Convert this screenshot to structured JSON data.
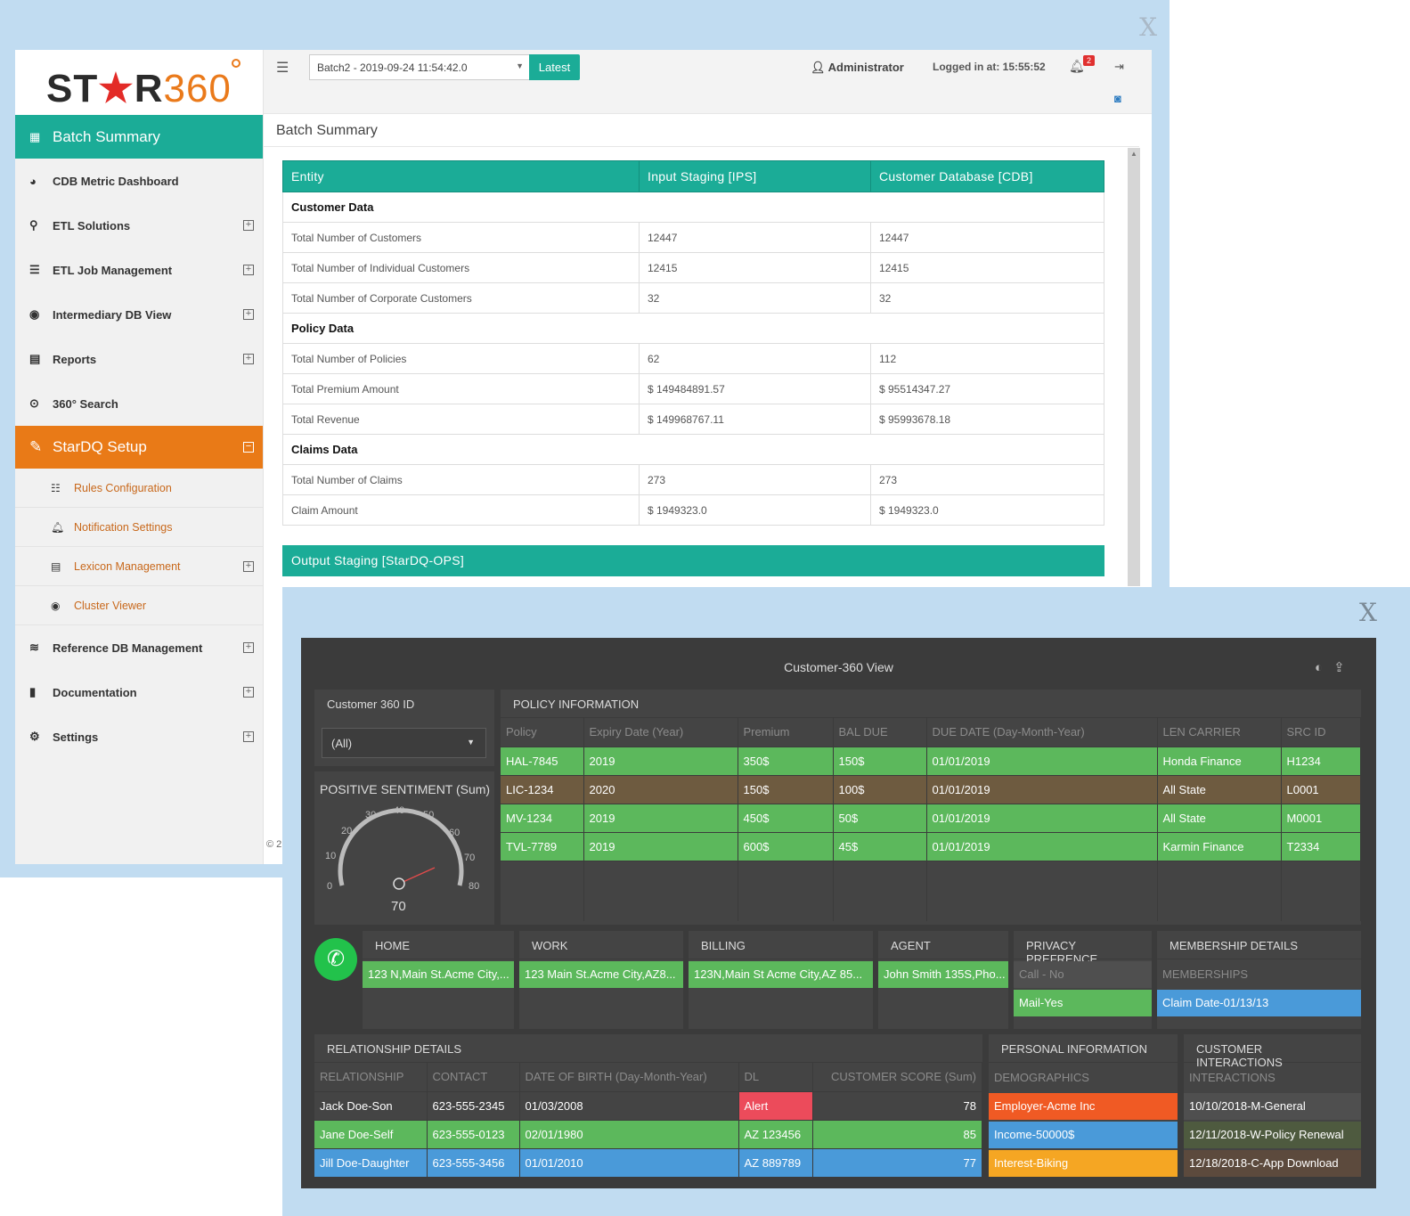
{
  "outer_close": "X",
  "logo": {
    "st": "ST",
    "star": "★",
    "r": "R",
    "n": "360"
  },
  "sidebar": {
    "active": "Batch Summary",
    "items": [
      "CDB Metric Dashboard",
      "ETL Solutions",
      "ETL Job Management",
      "Intermediary DB View",
      "Reports",
      "360° Search"
    ],
    "stardq": "StarDQ Setup",
    "subs": [
      "Rules Configuration",
      "Notification Settings",
      "Lexicon Management",
      "Cluster Viewer"
    ],
    "bottom": [
      "Reference DB Management",
      "Documentation",
      "Settings"
    ],
    "copyright": "© 2"
  },
  "topbar": {
    "batch": "Batch2 - 2019-09-24 11:54:42.0",
    "latest": "Latest",
    "admin": "Administrator",
    "logged": "Logged in at: 15:55:52",
    "notifications": "2"
  },
  "page_title": "Batch Summary",
  "summary": {
    "headers": [
      "Entity",
      "Input Staging [IPS]",
      "Customer Database [CDB]"
    ],
    "sections": [
      {
        "title": "Customer Data",
        "rows": [
          [
            "Total Number of Customers",
            "12447",
            "12447"
          ],
          [
            "Total Number of Individual Customers",
            "12415",
            "12415"
          ],
          [
            "Total Number of Corporate Customers",
            "32",
            "32"
          ]
        ]
      },
      {
        "title": "Policy Data",
        "rows": [
          [
            "Total Number of Policies",
            "62",
            "112"
          ],
          [
            "Total Premium Amount",
            "$  149484891.57",
            "$  95514347.27"
          ],
          [
            "Total Revenue",
            "$  149968767.11",
            "$  95993678.18"
          ]
        ]
      },
      {
        "title": "Claims Data",
        "rows": [
          [
            "Total Number of Claims",
            "273",
            "273"
          ],
          [
            "Claim Amount",
            "$  1949323.0",
            "$  1949323.0"
          ]
        ]
      }
    ],
    "ops": "Output Staging [StarDQ-OPS]"
  },
  "c360": {
    "close": "X",
    "title": "Customer-360 View",
    "id_label": "Customer 360 ID",
    "id_value": "(All)",
    "gauge_title": "POSITIVE SENTIMENT (Sum)",
    "gauge_value": "70",
    "gauge_ticks": [
      "0",
      "10",
      "20",
      "30",
      "40",
      "50",
      "60",
      "70",
      "80"
    ],
    "policy": {
      "title": "POLICY INFORMATION",
      "headers": [
        "Policy",
        "Expiry Date (Year)",
        "Premium",
        "BAL DUE",
        "DUE DATE (Day-Month-Year)",
        "LEN CARRIER",
        "SRC ID"
      ],
      "rows": [
        [
          "HAL-7845",
          "2019",
          "350$",
          "150$",
          "01/01/2019",
          "Honda Finance",
          "H1234"
        ],
        [
          "LIC-1234",
          "2020",
          "150$",
          "100$",
          "01/01/2019",
          "All State",
          "L0001"
        ],
        [
          "MV-1234",
          "2019",
          "450$",
          "50$",
          "01/01/2019",
          "All State",
          "M0001"
        ],
        [
          "TVL-7789",
          "2019",
          "600$",
          "45$",
          "01/01/2019",
          "Karmin Finance",
          "T2334"
        ]
      ]
    },
    "address": {
      "home_label": "HOME",
      "home": "123 N,Main St.Acme City,...",
      "work_label": "WORK",
      "work": "123 Main St.Acme City,AZ8...",
      "billing_label": "BILLING",
      "billing": "123N,Main St Acme City,AZ 85...",
      "agent_label": "AGENT",
      "agent": "John Smith 135S,Pho...",
      "privacy_label": "PRIVACY PREFRENCE",
      "privacy_call": "Call - No",
      "privacy_mail": "Mail-Yes",
      "membership_label": "MEMBERSHIP DETAILS",
      "memberships_sub": "MEMBERSHIPS",
      "membership": "Claim Date-01/13/13"
    },
    "relationship": {
      "title": "RELATIONSHIP DETAILS",
      "headers": [
        "RELATIONSHIP",
        "CONTACT",
        "DATE OF BIRTH (Day-Month-Year)",
        "DL",
        "CUSTOMER SCORE (Sum)"
      ],
      "rows": [
        [
          "Jack Doe-Son",
          "623-555-2345",
          "01/03/2008",
          "Alert",
          "78"
        ],
        [
          "Jane Doe-Self",
          "623-555-0123",
          "02/01/1980",
          "AZ 123456",
          "85"
        ],
        [
          "Jill Doe-Daughter",
          "623-555-3456",
          "01/01/2010",
          "AZ 889789",
          "77"
        ]
      ]
    },
    "personal": {
      "title": "PERSONAL INFORMATION",
      "sub": "DEMOGRAPHICS",
      "items": [
        "Employer-Acme Inc",
        "Income-50000$",
        "Interest-Biking"
      ]
    },
    "interactions": {
      "title": "CUSTOMER INTERACTIONS",
      "sub": "INTERACTIONS",
      "items": [
        "10/10/2018-M-General",
        "12/11/2018-W-Policy Renewal",
        "12/18/2018-C-App Download"
      ]
    }
  }
}
